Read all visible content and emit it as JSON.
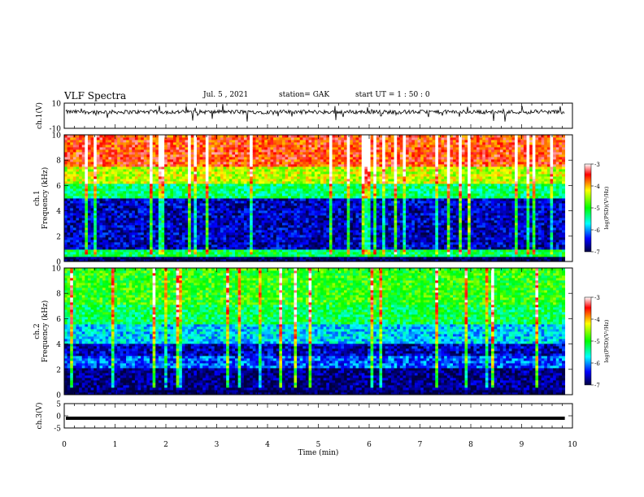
{
  "header": {
    "title": "VLF Spectra",
    "date": "Jul. 5 , 2021",
    "station": "station= GAK",
    "start": "start UT = 1 : 50 : 0"
  },
  "chart_data": [
    {
      "type": "line",
      "ylabel": "ch.1(V)",
      "ylim": [
        -10,
        10
      ],
      "yticks": [
        10,
        -10
      ],
      "xlim": [
        0,
        10
      ],
      "trace": "waveform",
      "trace_level": 3,
      "trace_color": "#000000"
    },
    {
      "type": "heatmap",
      "ylabel": "ch.1 Frequency (kHz)",
      "ylim": [
        0,
        10
      ],
      "yticks": [
        0,
        2,
        4,
        6,
        8,
        10
      ],
      "xlim": [
        0,
        10
      ],
      "data_x_end_min": 9.85,
      "colorbar": {
        "label": "log(PSD)(V²/Hz)",
        "ticks": [
          -3,
          -4,
          -5,
          -6,
          -7
        ],
        "range": [
          -7,
          -3
        ]
      },
      "bands": [
        {
          "from_khz": 0.3,
          "to_khz": 0.9,
          "log_psd": -5.2
        },
        {
          "from_khz": 0.9,
          "to_khz": 5.0,
          "log_psd": -6.6
        },
        {
          "from_khz": 5.0,
          "to_khz": 6.0,
          "log_psd": -5.3
        },
        {
          "from_khz": 6.0,
          "to_khz": 7.5,
          "log_psd": -4.4
        },
        {
          "from_khz": 7.5,
          "to_khz": 10.0,
          "log_psd": -3.6
        }
      ]
    },
    {
      "type": "heatmap",
      "ylabel": "ch.2 Frequency (kHz)",
      "ylim": [
        0,
        10
      ],
      "yticks": [
        0,
        2,
        4,
        6,
        8,
        10
      ],
      "xlim": [
        0,
        10
      ],
      "data_x_end_min": 9.85,
      "colorbar": {
        "label": "log(PSD)(V²/Hz)",
        "ticks": [
          -3,
          -4,
          -5,
          -6,
          -7
        ],
        "range": [
          -7,
          -3
        ]
      },
      "bands": [
        {
          "from_khz": 0.2,
          "to_khz": 2.0,
          "log_psd": -6.8
        },
        {
          "from_khz": 2.0,
          "to_khz": 3.0,
          "log_psd": -6.2
        },
        {
          "from_khz": 3.0,
          "to_khz": 4.0,
          "log_psd": -6.6
        },
        {
          "from_khz": 4.0,
          "to_khz": 5.5,
          "log_psd": -5.8
        },
        {
          "from_khz": 5.5,
          "to_khz": 7.0,
          "log_psd": -5.2
        },
        {
          "from_khz": 7.0,
          "to_khz": 10.0,
          "log_psd": -4.9
        }
      ]
    },
    {
      "type": "line",
      "ylabel": "ch.3(V)",
      "ylim": [
        -5,
        5
      ],
      "yticks": [
        5,
        0,
        -5
      ],
      "xlim": [
        0,
        10
      ],
      "trace": "flat",
      "trace_level": -1,
      "trace_color": "#000000"
    }
  ],
  "x_axis": {
    "label": "Time (min)",
    "ticks": [
      0,
      1,
      2,
      3,
      4,
      5,
      6,
      7,
      8,
      9,
      10
    ]
  },
  "colors": {
    "colormap": [
      "#00007f",
      "#0000ff",
      "#00ffff",
      "#7fff00",
      "#ffff00",
      "#ff0000"
    ]
  }
}
